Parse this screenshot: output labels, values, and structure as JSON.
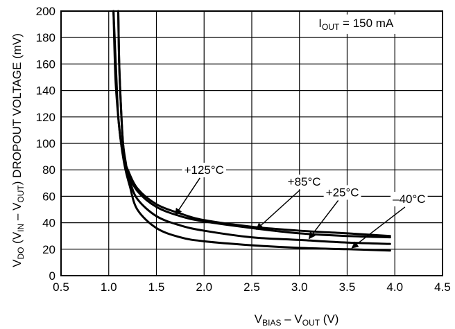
{
  "chart_data": {
    "type": "line",
    "xlabel": {
      "main": "V",
      "sub1": "BIAS",
      "mid": " – V",
      "sub2": "OUT",
      "tail": " (V)"
    },
    "ylabel": {
      "a": "V",
      "a_sub": "DO",
      "b": " (V",
      "b_sub": "IN",
      "c": " – V",
      "c_sub": "OUT",
      "d": ") DROPOUT VOLTAGE (mV)"
    },
    "xlim": [
      0.5,
      4.5
    ],
    "ylim": [
      0,
      200
    ],
    "x_ticks": [
      "0.5",
      "1.0",
      "1.5",
      "2.0",
      "2.5",
      "3.0",
      "3.5",
      "4.0",
      "4.5"
    ],
    "y_ticks": [
      "0",
      "20",
      "40",
      "60",
      "80",
      "100",
      "120",
      "140",
      "160",
      "180",
      "200"
    ],
    "grid": true,
    "condition": {
      "main": "I",
      "sub": "OUT",
      "tail": " = 150 mA"
    },
    "series": [
      {
        "name": "+125°C",
        "points": [
          [
            1.05,
            200
          ],
          [
            1.08,
            150
          ],
          [
            1.1,
            120
          ],
          [
            1.13,
            100
          ],
          [
            1.16,
            88
          ],
          [
            1.2,
            80
          ],
          [
            1.3,
            66
          ],
          [
            1.5,
            54
          ],
          [
            1.75,
            47
          ],
          [
            2.0,
            42
          ],
          [
            2.5,
            37
          ],
          [
            3.0,
            34
          ],
          [
            3.5,
            32
          ],
          [
            3.95,
            30
          ]
        ]
      },
      {
        "name": "+85°C",
        "points": [
          [
            1.1,
            200
          ],
          [
            1.11,
            160
          ],
          [
            1.13,
            125
          ],
          [
            1.15,
            100
          ],
          [
            1.18,
            85
          ],
          [
            1.2,
            78
          ],
          [
            1.3,
            64
          ],
          [
            1.5,
            52
          ],
          [
            1.75,
            45
          ],
          [
            2.0,
            41
          ],
          [
            2.5,
            36
          ],
          [
            3.0,
            32
          ],
          [
            3.5,
            30
          ],
          [
            3.95,
            29
          ]
        ]
      },
      {
        "name": "+25°C",
        "points": [
          [
            1.1,
            200
          ],
          [
            1.11,
            160
          ],
          [
            1.13,
            125
          ],
          [
            1.15,
            100
          ],
          [
            1.18,
            82
          ],
          [
            1.22,
            72
          ],
          [
            1.3,
            58
          ],
          [
            1.5,
            45
          ],
          [
            1.75,
            38
          ],
          [
            2.0,
            34
          ],
          [
            2.5,
            29
          ],
          [
            3.0,
            27
          ],
          [
            3.5,
            25
          ],
          [
            3.95,
            24
          ]
        ]
      },
      {
        "name": "–40°C",
        "points": [
          [
            1.05,
            200
          ],
          [
            1.07,
            150
          ],
          [
            1.1,
            120
          ],
          [
            1.13,
            100
          ],
          [
            1.17,
            82
          ],
          [
            1.22,
            68
          ],
          [
            1.3,
            50
          ],
          [
            1.5,
            36
          ],
          [
            1.75,
            29
          ],
          [
            2.0,
            26
          ],
          [
            2.5,
            23
          ],
          [
            3.0,
            21
          ],
          [
            3.5,
            20
          ],
          [
            3.95,
            19
          ]
        ]
      }
    ],
    "annotations": [
      {
        "label": "+125°C",
        "text_at": [
          2.0,
          77
        ],
        "arrow_to": [
          1.7,
          46
        ]
      },
      {
        "label": "+85°C",
        "text_at": [
          3.05,
          68
        ],
        "arrow_to": [
          2.55,
          35
        ]
      },
      {
        "label": "+25°C",
        "text_at": [
          3.45,
          60
        ],
        "arrow_to": [
          3.1,
          28
        ]
      },
      {
        "label": "–40°C",
        "text_at": [
          4.15,
          55
        ],
        "arrow_to": [
          3.55,
          21
        ]
      }
    ]
  }
}
